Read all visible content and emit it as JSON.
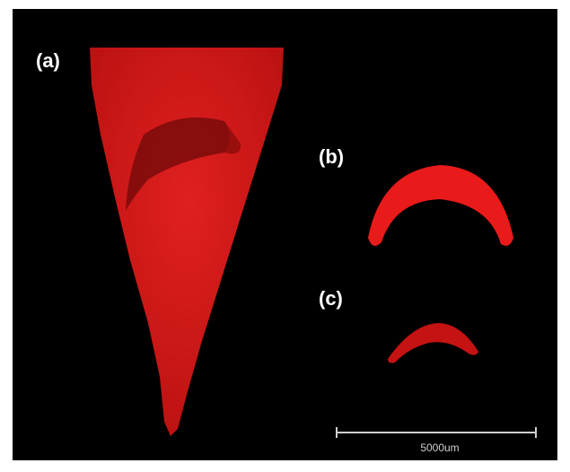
{
  "figure": {
    "panels": [
      {
        "label": "(a)"
      },
      {
        "label": "(b)"
      },
      {
        "label": "(c)"
      }
    ],
    "scale_bar": {
      "label": "5000um"
    }
  }
}
